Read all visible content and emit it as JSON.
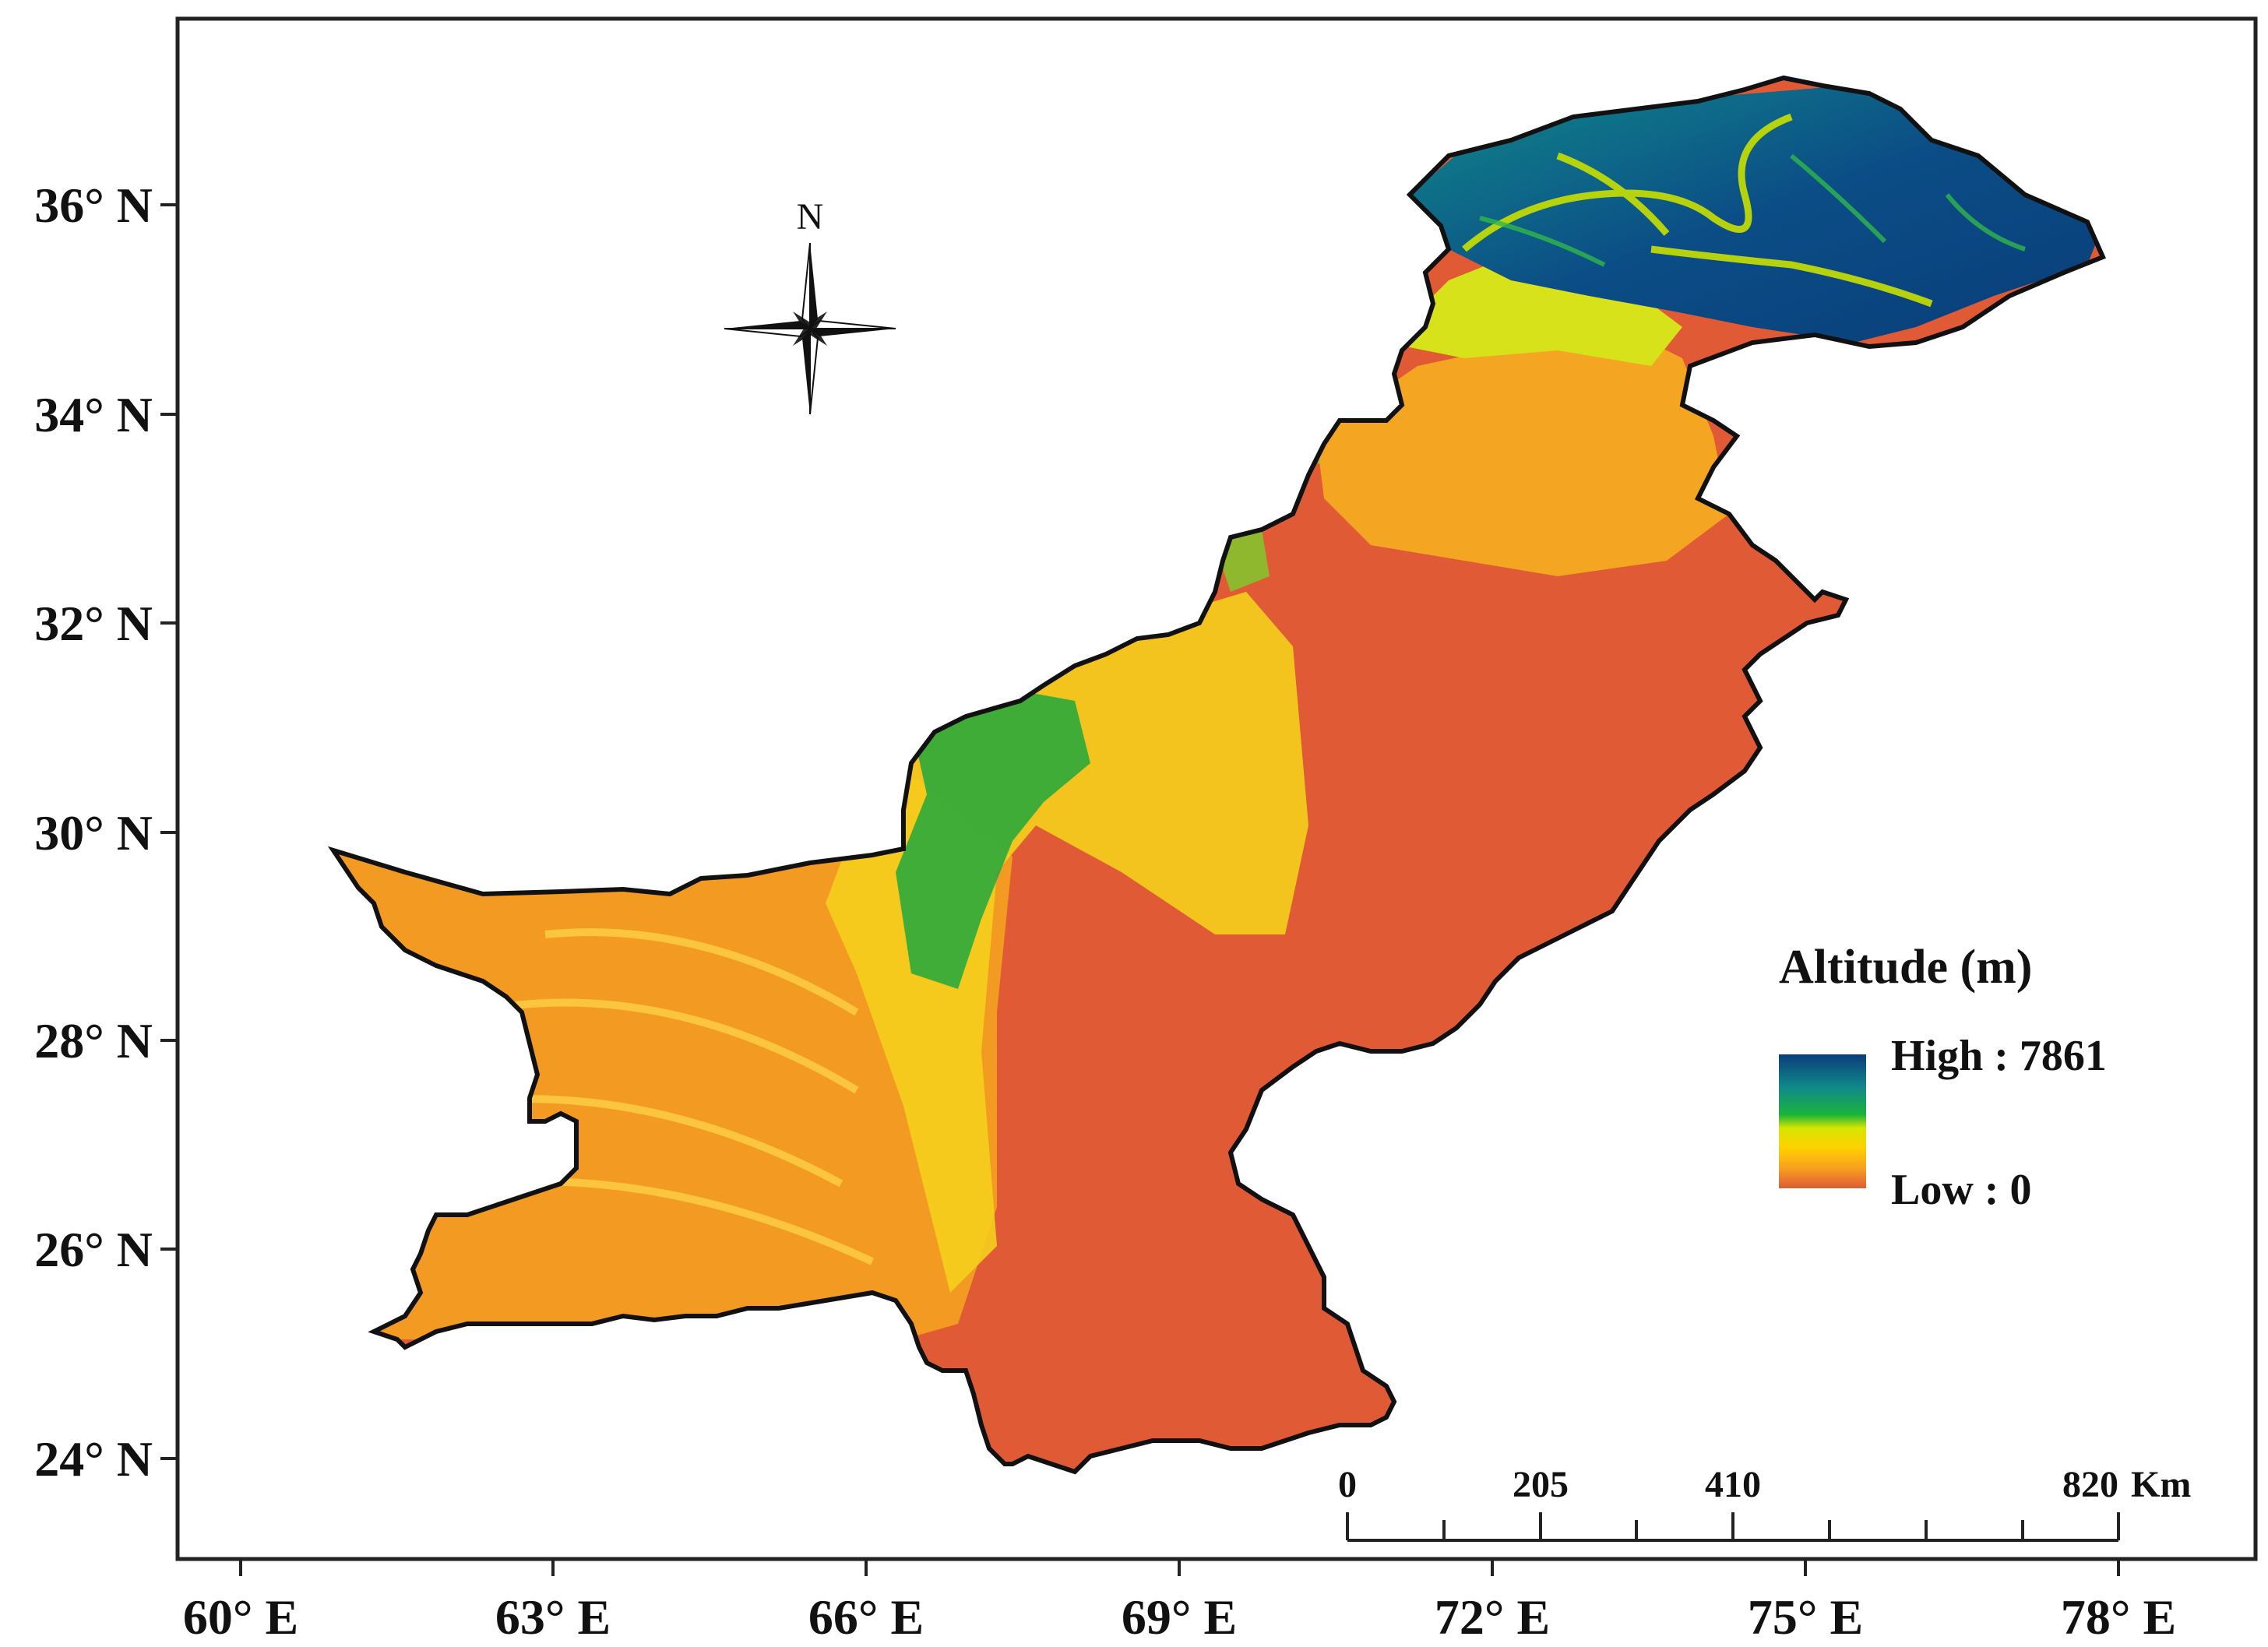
{
  "map": {
    "latitude_labels": [
      "36° N",
      "34° N",
      "32° N",
      "30° N",
      "28° N",
      "26° N",
      "24° N"
    ],
    "longitude_labels": [
      "60° E",
      "63° E",
      "66° E",
      "69° E",
      "72° E",
      "75° E",
      "78° E"
    ],
    "north_arrow_label": "N",
    "legend": {
      "title": "Altitude (m)",
      "high_label": "High : 7861",
      "low_label": "Low : 0",
      "colors": [
        "#0a3d7a",
        "#118a8a",
        "#1bb33a",
        "#d6e600",
        "#ffd000",
        "#f7a020",
        "#e05a36"
      ]
    },
    "scale_bar": {
      "labels": [
        "0",
        "205",
        "410",
        "820"
      ],
      "unit": "Km"
    },
    "colors": {
      "lowland": "#e05a36",
      "plateau": "#f39a22",
      "upland": "#f6cf1c",
      "hills": "#1ea83c",
      "mountains": "#0b4d86",
      "border": "#111111"
    }
  }
}
